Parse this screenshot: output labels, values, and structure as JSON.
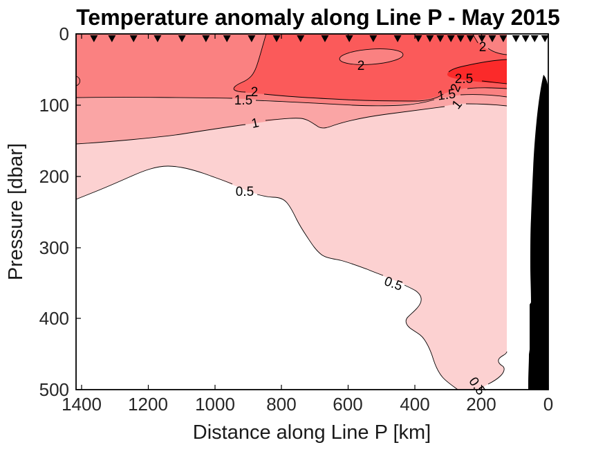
{
  "chart_data": {
    "type": "filled_contour_section",
    "title": "Temperature anomaly along Line P - May 2015",
    "xlabel": "Distance along Line P [km]",
    "ylabel": "Pressure [dbar]",
    "x_ticks": [
      "1400",
      "1200",
      "1000",
      "800",
      "600",
      "400",
      "200",
      "0"
    ],
    "y_ticks": [
      "0",
      "100",
      "200",
      "300",
      "400",
      "500"
    ],
    "x_axis_reversed": true,
    "xlim_km": [
      1417,
      0
    ],
    "ylim_dbar": [
      0,
      500
    ],
    "grid": false,
    "legend": "none (labeled contours)",
    "contour_levels_degC": [
      0.5,
      1,
      1.5,
      2,
      2.5
    ],
    "band_colors": {
      "lt0.5": "#ffffff",
      "0.5-1": "#fcd1d1",
      "1-1.5": "#faa5a5",
      "1.5-2": "#fa8181",
      "2-2.5": "#fb5a5a",
      "2.5-3": "#fb2a2a"
    },
    "contour_line_color": "#000000",
    "bathymetry_color": "#000000",
    "station_marker": "filled downward triangle along top axis",
    "station_marker_color": "#000000",
    "stations_km": [
      1363,
      1309,
      1244,
      1172,
      1099,
      1027,
      964,
      890,
      815,
      743,
      670,
      597,
      525,
      452,
      390,
      355,
      324,
      292,
      263,
      234,
      199,
      168,
      135,
      97,
      68,
      41,
      10
    ],
    "data_extent_km": [
      1416,
      124
    ],
    "contour_labels": [
      {
        "text": "2",
        "level_degC": 2,
        "km": 881,
        "dbar": 82
      },
      {
        "text": "1.5",
        "level_degC": 1.5,
        "km": 915,
        "dbar": 93
      },
      {
        "text": "1",
        "level_degC": 1,
        "km": 879,
        "dbar": 125
      },
      {
        "text": "2",
        "level_degC": 2,
        "km": 562,
        "dbar": 45
      },
      {
        "text": "2",
        "level_degC": 2,
        "km": 197,
        "dbar": 18
      },
      {
        "text": "2.5",
        "level_degC": 2.5,
        "km": 253,
        "dbar": 63
      },
      {
        "text": "2",
        "level_degC": 2,
        "km": 278,
        "dbar": 76
      },
      {
        "text": "1.5",
        "level_degC": 1.5,
        "km": 305,
        "dbar": 87
      },
      {
        "text": "1",
        "level_degC": 1,
        "km": 274,
        "dbar": 99
      },
      {
        "text": "0.5",
        "level_degC": 0.5,
        "km": 911,
        "dbar": 222
      },
      {
        "text": "0.5",
        "level_degC": 0.5,
        "km": 465,
        "dbar": 351
      },
      {
        "text": "0.5",
        "level_degC": 0.5,
        "km": 214,
        "dbar": 495
      }
    ],
    "notes": "Warm anomaly (>2 degC) in upper 80 dbar offshore; strongest (>2.5 degC) near coast at 60-115 dbar; anomaly >0.5 degC deepens toward coast reaching 500 dbar near 200 km; black wedge = bathymetry near shore."
  }
}
